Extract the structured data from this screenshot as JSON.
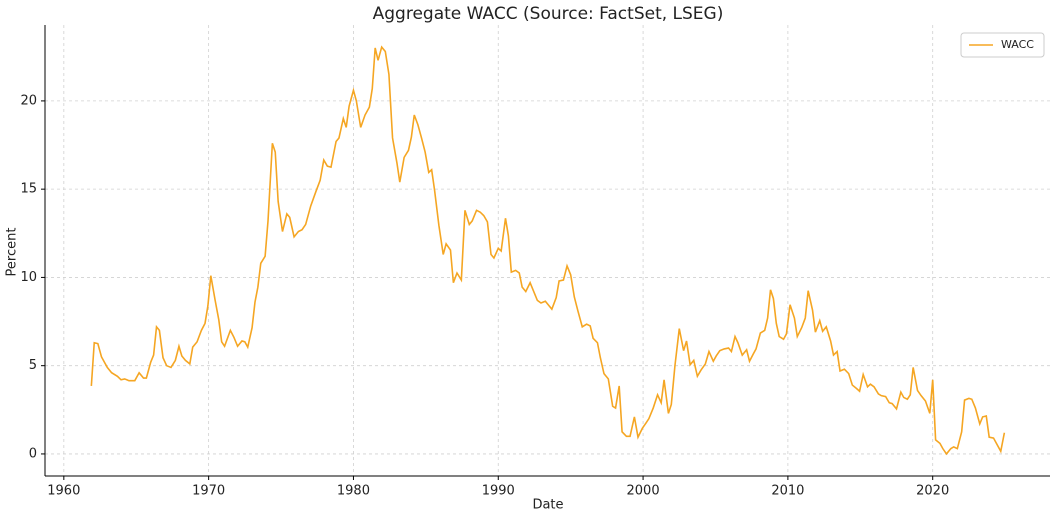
{
  "chart_data": {
    "type": "line",
    "title": "Aggregate WACC (Source: FactSet, LSEG)",
    "xlabel": "Date",
    "ylabel": "Percent",
    "x": [
      1961.9,
      1962.1,
      1962.35,
      1962.6,
      1963.0,
      1963.3,
      1963.7,
      1963.95,
      1964.2,
      1964.5,
      1964.9,
      1965.2,
      1965.5,
      1965.7,
      1966.0,
      1966.2,
      1966.4,
      1966.6,
      1966.85,
      1967.1,
      1967.4,
      1967.7,
      1967.95,
      1968.15,
      1968.4,
      1968.7,
      1968.9,
      1969.2,
      1969.5,
      1969.75,
      1969.95,
      1970.15,
      1970.45,
      1970.7,
      1970.9,
      1971.1,
      1971.5,
      1971.75,
      1972.0,
      1972.3,
      1972.5,
      1972.7,
      1973.0,
      1973.2,
      1973.4,
      1973.6,
      1973.9,
      1974.1,
      1974.4,
      1974.6,
      1974.8,
      1975.1,
      1975.4,
      1975.6,
      1975.9,
      1976.2,
      1976.45,
      1976.7,
      1977.05,
      1977.4,
      1977.7,
      1977.95,
      1978.2,
      1978.45,
      1978.8,
      1979.0,
      1979.3,
      1979.5,
      1979.7,
      1980.0,
      1980.2,
      1980.5,
      1980.8,
      1981.1,
      1981.3,
      1981.5,
      1981.7,
      1981.95,
      1982.2,
      1982.45,
      1982.7,
      1983.0,
      1983.2,
      1983.5,
      1983.8,
      1984.0,
      1984.2,
      1984.45,
      1984.7,
      1984.95,
      1985.2,
      1985.4,
      1985.6,
      1985.9,
      1986.2,
      1986.4,
      1986.7,
      1986.9,
      1987.15,
      1987.45,
      1987.7,
      1988.0,
      1988.2,
      1988.5,
      1988.75,
      1989.0,
      1989.25,
      1989.5,
      1989.7,
      1990.0,
      1990.2,
      1990.5,
      1990.7,
      1990.9,
      1991.2,
      1991.45,
      1991.65,
      1991.9,
      1992.2,
      1992.4,
      1992.7,
      1992.95,
      1993.25,
      1993.45,
      1993.7,
      1994.0,
      1994.2,
      1994.5,
      1994.75,
      1995.0,
      1995.25,
      1995.5,
      1995.8,
      1996.1,
      1996.35,
      1996.55,
      1996.85,
      1997.05,
      1997.3,
      1997.6,
      1997.9,
      1998.1,
      1998.35,
      1998.55,
      1998.85,
      1999.1,
      1999.4,
      1999.65,
      1999.95,
      2000.2,
      2000.4,
      2000.7,
      2001.0,
      2001.25,
      2001.45,
      2001.75,
      2001.95,
      2002.2,
      2002.5,
      2002.8,
      2003.0,
      2003.25,
      2003.5,
      2003.75,
      2004.0,
      2004.3,
      2004.55,
      2004.85,
      2005.05,
      2005.3,
      2005.6,
      2005.9,
      2006.1,
      2006.35,
      2006.55,
      2006.85,
      2007.15,
      2007.35,
      2007.6,
      2007.8,
      2008.1,
      2008.4,
      2008.6,
      2008.8,
      2009.0,
      2009.2,
      2009.4,
      2009.7,
      2009.9,
      2010.15,
      2010.45,
      2010.65,
      2010.95,
      2011.2,
      2011.4,
      2011.7,
      2011.9,
      2012.2,
      2012.4,
      2012.65,
      2012.95,
      2013.15,
      2013.4,
      2013.6,
      2013.9,
      2014.2,
      2014.45,
      2014.75,
      2014.95,
      2015.2,
      2015.5,
      2015.7,
      2015.95,
      2016.25,
      2016.45,
      2016.75,
      2017.0,
      2017.2,
      2017.5,
      2017.8,
      2018.0,
      2018.25,
      2018.45,
      2018.65,
      2018.95,
      2019.2,
      2019.5,
      2019.8,
      2020.0,
      2020.2,
      2020.5,
      2020.7,
      2020.95,
      2021.25,
      2021.45,
      2021.7,
      2022.0,
      2022.2,
      2022.5,
      2022.7,
      2022.95,
      2023.25,
      2023.45,
      2023.7,
      2023.9,
      2024.2,
      2024.4,
      2024.7,
      2024.95
    ],
    "series": [
      {
        "name": "WACC",
        "color": "#f5a623",
        "values": [
          3.85,
          6.3,
          6.25,
          5.5,
          4.9,
          4.6,
          4.4,
          4.2,
          4.25,
          4.15,
          4.15,
          4.6,
          4.3,
          4.3,
          5.2,
          5.6,
          7.2,
          7.0,
          5.45,
          5.0,
          4.9,
          5.3,
          6.1,
          5.55,
          5.3,
          5.1,
          6.05,
          6.35,
          7.0,
          7.4,
          8.4,
          10.1,
          8.7,
          7.6,
          6.35,
          6.1,
          7.0,
          6.6,
          6.1,
          6.4,
          6.35,
          6.05,
          7.15,
          8.6,
          9.45,
          10.8,
          11.2,
          13.2,
          17.6,
          17.1,
          14.3,
          12.6,
          13.6,
          13.4,
          12.3,
          12.6,
          12.7,
          13.0,
          14.05,
          14.85,
          15.5,
          16.65,
          16.3,
          16.25,
          17.7,
          17.9,
          19.0,
          18.5,
          19.7,
          20.6,
          20.0,
          18.5,
          19.2,
          19.65,
          20.7,
          23.0,
          22.3,
          23.05,
          22.8,
          21.5,
          17.9,
          16.5,
          15.4,
          16.8,
          17.2,
          17.95,
          19.2,
          18.65,
          17.9,
          17.1,
          15.95,
          16.1,
          14.95,
          12.95,
          11.3,
          11.9,
          11.55,
          9.7,
          10.25,
          9.85,
          13.8,
          13.0,
          13.2,
          13.8,
          13.7,
          13.5,
          13.15,
          11.3,
          11.1,
          11.65,
          11.5,
          13.35,
          12.35,
          10.3,
          10.4,
          10.25,
          9.45,
          9.2,
          9.7,
          9.3,
          8.7,
          8.55,
          8.65,
          8.45,
          8.2,
          8.85,
          9.8,
          9.85,
          10.65,
          10.15,
          8.9,
          8.1,
          7.2,
          7.35,
          7.25,
          6.55,
          6.3,
          5.45,
          4.55,
          4.25,
          2.7,
          2.6,
          3.85,
          1.25,
          1.0,
          1.0,
          2.1,
          0.95,
          1.45,
          1.75,
          2.0,
          2.6,
          3.35,
          2.9,
          4.2,
          2.3,
          2.8,
          5.0,
          7.1,
          5.85,
          6.4,
          5.05,
          5.3,
          4.4,
          4.75,
          5.1,
          5.8,
          5.25,
          5.55,
          5.85,
          5.95,
          6.0,
          5.8,
          6.65,
          6.3,
          5.6,
          5.9,
          5.25,
          5.65,
          5.95,
          6.85,
          7.0,
          7.7,
          9.3,
          8.8,
          7.4,
          6.65,
          6.5,
          6.8,
          8.45,
          7.7,
          6.65,
          7.15,
          7.7,
          9.25,
          8.15,
          6.9,
          7.55,
          6.95,
          7.2,
          6.4,
          5.6,
          5.8,
          4.7,
          4.8,
          4.55,
          3.9,
          3.7,
          3.55,
          4.5,
          3.8,
          3.95,
          3.8,
          3.4,
          3.3,
          3.25,
          2.9,
          2.85,
          2.55,
          3.5,
          3.2,
          3.1,
          3.35,
          4.9,
          3.6,
          3.3,
          3.0,
          2.3,
          4.2,
          0.8,
          0.6,
          0.3,
          0.0,
          0.3,
          0.4,
          0.3,
          1.25,
          3.05,
          3.15,
          3.1,
          2.6,
          1.7,
          2.1,
          2.15,
          0.95,
          0.9,
          0.6,
          0.15,
          1.2
        ]
      }
    ],
    "xlim": [
      1958.7,
      2028.1
    ],
    "ylim": [
      -1.25,
      24.3
    ],
    "xticks": [
      1960,
      1970,
      1980,
      1990,
      2000,
      2010,
      2020
    ],
    "yticks": [
      0,
      5,
      10,
      15,
      20
    ],
    "grid": true,
    "legend": "upper right"
  }
}
